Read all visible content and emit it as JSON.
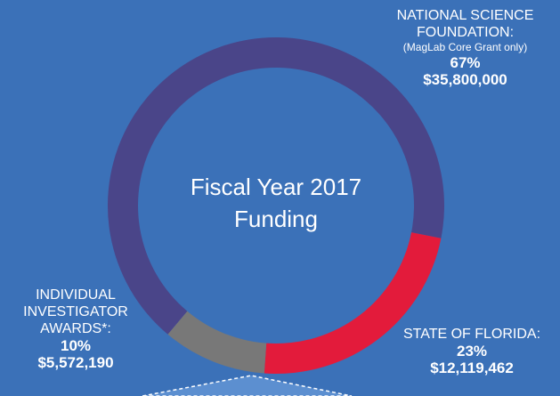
{
  "chart_data": {
    "type": "donut",
    "title": "Fiscal Year 2017 Funding",
    "categories": [
      "NATIONAL SCIENCE FOUNDATION:",
      "STATE OF FLORIDA:",
      "INDIVIDUAL INVESTIGATOR AWARDS*:"
    ],
    "annotations": [
      "(MagLab Core Grant only)"
    ],
    "values": [
      67,
      23,
      10
    ],
    "value_labels": [
      "67%",
      "23%",
      "10%"
    ],
    "amount_labels": [
      "$35,800,000",
      "$12,119,462",
      "$5,572,190"
    ],
    "colors": [
      "#4a4589",
      "#e31b3b",
      "#787878"
    ]
  }
}
